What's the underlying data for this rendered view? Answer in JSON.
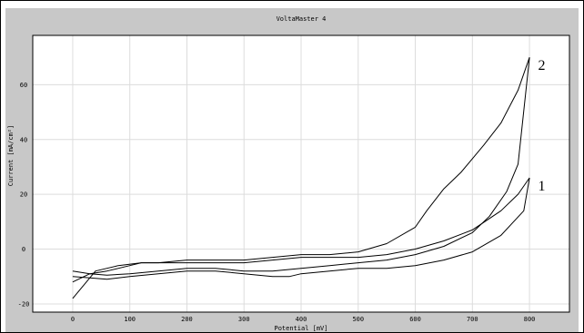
{
  "window": {
    "title": "VoltaMaster 4"
  },
  "chart_data": {
    "type": "line",
    "title": "VoltaMaster 4",
    "xlabel": "Potential [mV]",
    "ylabel": "Current [mA/cm²]",
    "xlim": [
      -70,
      870
    ],
    "ylim": [
      -23,
      78
    ],
    "x_ticks": [
      0,
      100,
      200,
      300,
      400,
      500,
      600,
      700,
      800
    ],
    "y_ticks": [
      -20,
      0,
      20,
      40,
      60
    ],
    "grid": true,
    "line_color": "#000000",
    "series": [
      {
        "name": "1",
        "segments": [
          {
            "x": [
              0,
              30,
              60,
              100,
              150,
              200,
              250,
              300,
              350,
              380,
              400,
              450,
              500,
              550,
              600,
              650,
              700,
              750,
              790,
              800
            ],
            "y": [
              -10,
              -10.5,
              -11,
              -10,
              -9,
              -8,
              -8,
              -9,
              -10,
              -10,
              -9,
              -8,
              -7,
              -7,
              -6,
              -4,
              -1,
              5,
              14,
              26
            ]
          },
          {
            "x": [
              800,
              780,
              750,
              700,
              650,
              600,
              550,
              500,
              450,
              400,
              350,
              300,
              250,
              200,
              150,
              120,
              100,
              60,
              30,
              0
            ],
            "y": [
              26,
              20,
              14,
              7,
              3,
              0,
              -2,
              -3,
              -3,
              -3,
              -4,
              -5,
              -5,
              -5,
              -5,
              -5,
              -6,
              -8,
              -9,
              -12
            ]
          }
        ]
      },
      {
        "name": "2",
        "segments": [
          {
            "x": [
              0,
              30,
              60,
              100,
              150,
              200,
              250,
              300,
              350,
              400,
              450,
              500,
              550,
              600,
              650,
              700,
              730,
              760,
              780,
              800
            ],
            "y": [
              -8,
              -9,
              -9.5,
              -9,
              -8,
              -7,
              -7,
              -8,
              -8,
              -7,
              -6,
              -5,
              -4,
              -2,
              1,
              6,
              12,
              21,
              31,
              70
            ]
          },
          {
            "x": [
              800,
              780,
              750,
              720,
              700,
              680,
              650,
              620,
              600,
              550,
              500,
              450,
              400,
              350,
              300,
              250,
              200,
              150,
              120,
              80,
              40,
              0
            ],
            "y": [
              70,
              58,
              46,
              38,
              33,
              28,
              22,
              14,
              8,
              2,
              -1,
              -2,
              -2,
              -3,
              -4,
              -4,
              -4,
              -5,
              -5,
              -6,
              -8,
              -18
            ]
          }
        ]
      }
    ],
    "annotations": [
      {
        "text": "2",
        "x": 815,
        "y": 67
      },
      {
        "text": "1",
        "x": 815,
        "y": 23
      }
    ]
  }
}
